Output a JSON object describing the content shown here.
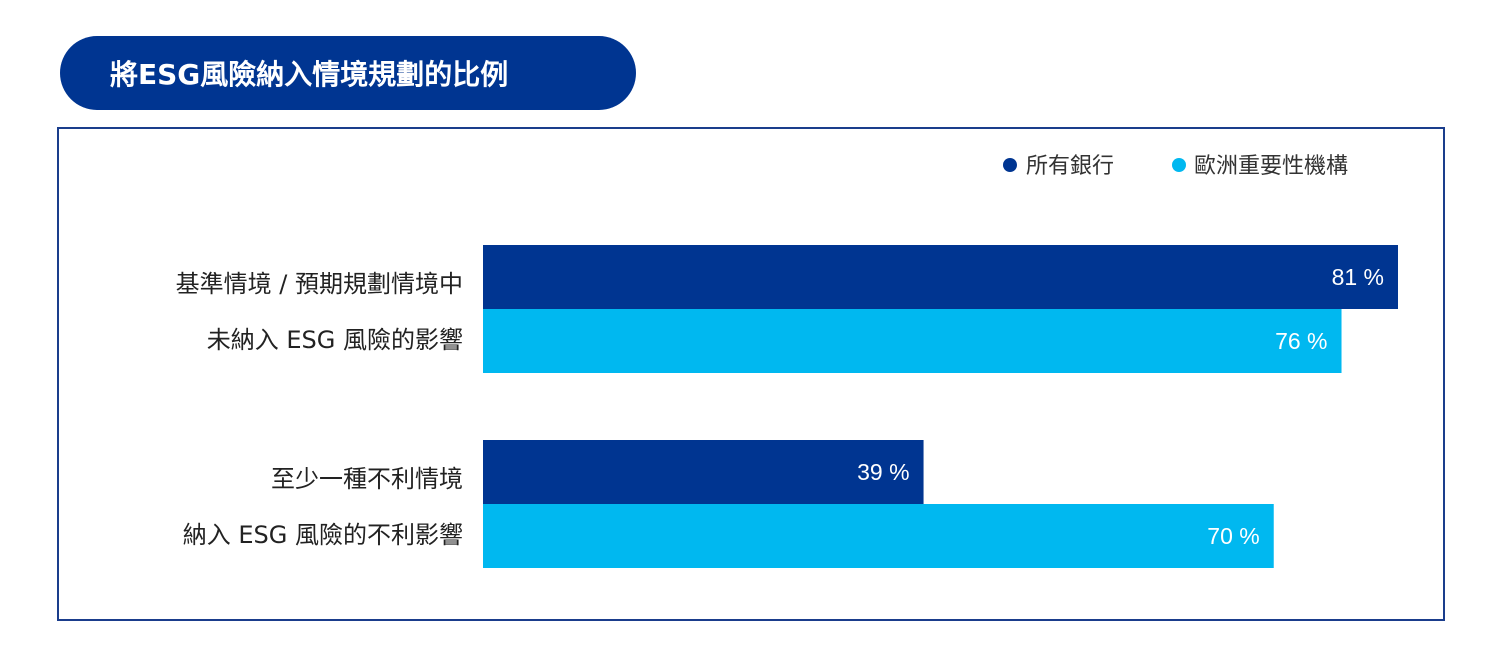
{
  "title": "將ESG風險納入情境規劃的比例",
  "chart_data": {
    "type": "bar",
    "orientation": "horizontal",
    "categories": [
      [
        "基準情境 / 預期規劃情境中",
        "未納入 ESG 風險的影響"
      ],
      [
        "至少一種不利情境",
        "納入 ESG 風險的不利影響"
      ]
    ],
    "series": [
      {
        "name": "所有銀行",
        "color": "#003591",
        "values": [
          81,
          39
        ]
      },
      {
        "name": "歐洲重要性機構",
        "color": "#00b8f0",
        "values": [
          76,
          70
        ]
      }
    ],
    "data_labels": [
      [
        "81 %",
        "39 %"
      ],
      [
        "76 %",
        "70 %"
      ]
    ],
    "xlim": [
      0,
      100
    ],
    "legend_position": "top-right"
  }
}
